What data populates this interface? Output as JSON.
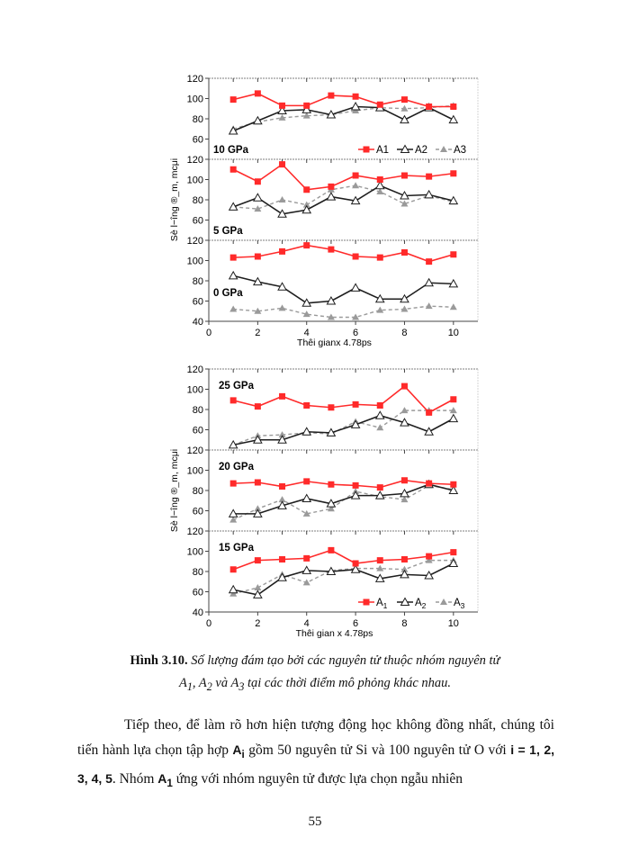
{
  "colors": {
    "A1": "#ff2a2a",
    "A2": "#1e1e1e",
    "A3": "#9a9a9a",
    "grid_border": "#999999"
  },
  "chart_data": [
    {
      "type": "line",
      "ylabel": "Sè l−îng ®_m, mcμi",
      "xlabel": "Thêi gianx 4.78ps",
      "xlim": [
        0,
        11
      ],
      "xticks": [
        0,
        2,
        4,
        6,
        8,
        10
      ],
      "ylim": [
        40,
        120
      ],
      "yticks": [
        60,
        80,
        100,
        120
      ],
      "bottom_yticks": [
        40,
        60,
        80,
        100,
        120
      ],
      "x": [
        1,
        2,
        3,
        4,
        5,
        6,
        7,
        8,
        9,
        10
      ],
      "legend": {
        "entries": [
          "A1",
          "A2",
          "A3"
        ],
        "panel": "10 GPa",
        "placement": "bottom-right",
        "subscript": false
      },
      "panels": [
        {
          "label": "10 GPa",
          "label_placement": "bottom-left",
          "series": [
            {
              "name": "A1",
              "values": [
                99,
                105,
                93,
                93,
                103,
                102,
                94,
                99,
                92,
                92
              ]
            },
            {
              "name": "A2",
              "values": [
                68,
                78,
                88,
                89,
                84,
                92,
                91,
                79,
                91,
                79
              ]
            },
            {
              "name": "A3",
              "values": [
                70,
                77,
                81,
                83,
                84,
                88,
                91,
                90,
                91,
                93
              ]
            }
          ]
        },
        {
          "label": "5 GPa",
          "label_placement": "bottom-left",
          "series": [
            {
              "name": "A1",
              "values": [
                110,
                98,
                115,
                90,
                93,
                104,
                100,
                104,
                103,
                106
              ]
            },
            {
              "name": "A2",
              "values": [
                73,
                82,
                66,
                70,
                83,
                79,
                94,
                84,
                85,
                79
              ]
            },
            {
              "name": "A3",
              "values": [
                73,
                71,
                80,
                75,
                90,
                94,
                88,
                76,
                84,
                78
              ]
            }
          ]
        },
        {
          "label": "0 GPa",
          "label_placement": "middle-left",
          "series": [
            {
              "name": "A1",
              "values": [
                103,
                104,
                109,
                115,
                111,
                104,
                103,
                108,
                99,
                106
              ]
            },
            {
              "name": "A2",
              "values": [
                85,
                79,
                74,
                58,
                60,
                73,
                62,
                62,
                78,
                77
              ]
            },
            {
              "name": "A3",
              "values": [
                52,
                50,
                53,
                47,
                44,
                44,
                51,
                52,
                55,
                54
              ]
            }
          ]
        }
      ]
    },
    {
      "type": "line",
      "ylabel": "Sè l−îng ®_m, mcμi",
      "xlabel": "Thêi gian x 4.78ps",
      "xlim": [
        0,
        11
      ],
      "xticks": [
        0,
        2,
        4,
        6,
        8,
        10
      ],
      "ylim": [
        40,
        120
      ],
      "yticks": [
        60,
        80,
        100,
        120
      ],
      "bottom_yticks": [
        40,
        60,
        80,
        100,
        120
      ],
      "x": [
        1,
        2,
        3,
        4,
        5,
        6,
        7,
        8,
        9,
        10
      ],
      "legend": {
        "entries": [
          "A1",
          "A2",
          "A3"
        ],
        "panel": "15 GPa",
        "placement": "bottom-right",
        "subscript": true
      },
      "panels": [
        {
          "label": "25 GPa",
          "label_placement": "top-left",
          "series": [
            {
              "name": "A1",
              "values": [
                89,
                83,
                93,
                84,
                82,
                85,
                84,
                103,
                77,
                90
              ]
            },
            {
              "name": "A2",
              "values": [
                45,
                50,
                50,
                58,
                57,
                65,
                74,
                67,
                58,
                71
              ]
            },
            {
              "name": "A3",
              "values": [
                45,
                54,
                55,
                57,
                56,
                68,
                62,
                79,
                79,
                79
              ]
            }
          ]
        },
        {
          "label": "20 GPa",
          "label_placement": "top-left",
          "series": [
            {
              "name": "A1",
              "values": [
                87,
                88,
                84,
                89,
                86,
                85,
                83,
                90,
                87,
                86
              ]
            },
            {
              "name": "A2",
              "values": [
                57,
                57,
                65,
                72,
                67,
                75,
                75,
                77,
                86,
                80
              ]
            },
            {
              "name": "A3",
              "values": [
                51,
                62,
                71,
                57,
                62,
                79,
                74,
                71,
                85,
                81
              ]
            }
          ]
        },
        {
          "label": "15 GPa",
          "label_placement": "top-left",
          "series": [
            {
              "name": "A1",
              "values": [
                82,
                91,
                92,
                93,
                101,
                88,
                91,
                92,
                95,
                99
              ]
            },
            {
              "name": "A2",
              "values": [
                62,
                57,
                74,
                81,
                80,
                82,
                73,
                77,
                76,
                88
              ]
            },
            {
              "name": "A3",
              "values": [
                58,
                64,
                77,
                69,
                81,
                83,
                83,
                82,
                91,
                91
              ]
            }
          ]
        }
      ]
    }
  ],
  "caption": {
    "label": "Hình 3.10.",
    "text1": " Số lượng đám tạo bởi các nguyên tử thuộc nhóm nguyên tử",
    "a1": "A",
    "a1_sub": "1",
    "sep1": ", ",
    "a2": "A",
    "a2_sub": "2",
    "sep2": " và ",
    "a3": "A",
    "a3_sub": "3",
    "text2": " tại các thời điểm mô phỏng khác nhau."
  },
  "paragraph": {
    "t1": "Tiếp theo, để làm rõ hơn hiện tượng động học không đồng nhất, chúng tôi tiến hành lựa chọn tập hợp ",
    "ai": "A",
    "ai_sub": "i",
    "t2": " gồm 50 nguyên tử Si và 100 nguyên tử O với ",
    "ilist": "i = 1, 2, 3, 4, 5",
    "t3": ". Nhóm ",
    "a1": "A",
    "a1_sub": "1",
    "t4": " ứng với nhóm nguyên tử được lựa chọn ngẫu nhiên"
  },
  "page_number": "55"
}
